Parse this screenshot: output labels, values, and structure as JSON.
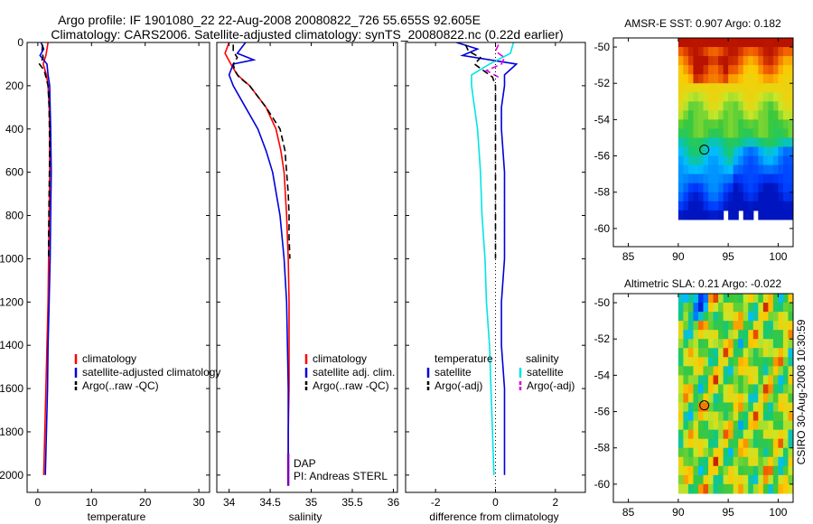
{
  "header": {
    "line1": "Argo profile: IF 1901080_22 22-Aug-2008 20080822_726 55.655S 92.605E",
    "line2": "Climatology: CARS2006. Satellite-adjusted climatology: synTS_20080822.nc (0.22d earlier)"
  },
  "side_label": "CSIRO 30-Aug-2008 10:30:59",
  "colors": {
    "climatology": "#ff0000",
    "satellite": "#0000dd",
    "argo": "#000000",
    "satellite_diff_salinity": "#00e5e5",
    "argo_adj_salinity": "#dd00dd",
    "marker_profile": "#7a00b4"
  },
  "chart_data": [
    {
      "id": "temperature",
      "type": "line",
      "xlabel": "temperature",
      "ylabel": "",
      "xlim": [
        -2,
        32
      ],
      "ylim": [
        2080,
        0
      ],
      "xticks": [
        "0",
        "10",
        "20",
        "30"
      ],
      "xtick_values": [
        0,
        10,
        20,
        30
      ],
      "yticks": [
        "0",
        "200",
        "400",
        "600",
        "800",
        "1000",
        "1200",
        "1400",
        "1600",
        "1800",
        "2000"
      ],
      "ytick_values": [
        0,
        200,
        400,
        600,
        800,
        1000,
        1200,
        1400,
        1600,
        1800,
        2000
      ],
      "legend": {
        "position": "lower-right",
        "entries": [
          "climatology",
          "satellite-adjusted climatology",
          "Argo(..raw -QC)"
        ]
      },
      "series": [
        {
          "name": "climatology",
          "style": "solid",
          "depth": [
            0,
            30,
            60,
            100,
            150,
            200,
            300,
            400,
            600,
            800,
            1000,
            1200,
            1400,
            1600,
            1800,
            2000
          ],
          "value": [
            1.9,
            1.7,
            1.5,
            1.0,
            1.6,
            1.9,
            2.1,
            2.2,
            2.2,
            2.1,
            2.0,
            1.9,
            1.7,
            1.5,
            1.3,
            1.1
          ]
        },
        {
          "name": "satellite-adjusted climatology",
          "style": "solid",
          "depth": [
            0,
            30,
            60,
            100,
            150,
            200,
            300,
            400,
            600,
            800,
            1000,
            1200,
            1400,
            1600,
            1800,
            2000
          ],
          "value": [
            0.6,
            1.1,
            0.4,
            1.7,
            1.9,
            2.2,
            2.3,
            2.4,
            2.5,
            2.4,
            2.3,
            2.1,
            1.9,
            1.8,
            1.6,
            1.4
          ]
        },
        {
          "name": "Argo(..raw -QC)",
          "style": "dashed",
          "depth": [
            10,
            40,
            70,
            100,
            130,
            160,
            200,
            300,
            500,
            700,
            900,
            1000
          ],
          "value": [
            0.9,
            0.8,
            1.0,
            0.3,
            1.2,
            1.5,
            1.9,
            2.1,
            2.2,
            2.1,
            2.0,
            2.0
          ]
        }
      ]
    },
    {
      "id": "salinity",
      "type": "line",
      "xlabel": "salinity",
      "ylabel": "",
      "xlim": [
        33.85,
        36.05
      ],
      "ylim": [
        2080,
        0
      ],
      "xticks": [
        "34",
        "34.5",
        "35",
        "35.5",
        "36"
      ],
      "xtick_values": [
        34,
        34.5,
        35,
        35.5,
        36
      ],
      "legend": {
        "position": "lower-right",
        "entries": [
          "climatology",
          "satellite adj. clim.",
          "Argo(..raw -QC)"
        ]
      },
      "annotation": {
        "lines": [
          "DAP",
          "PI: Andreas STERL"
        ]
      },
      "series": [
        {
          "name": "climatology",
          "style": "solid",
          "depth": [
            0,
            50,
            100,
            150,
            200,
            300,
            400,
            500,
            600,
            800,
            1000,
            1200,
            1400,
            1600,
            1800,
            2000
          ],
          "value": [
            34.0,
            33.95,
            34.02,
            34.1,
            34.25,
            34.45,
            34.57,
            34.63,
            34.67,
            34.7,
            34.72,
            34.73,
            34.73,
            34.73,
            34.72,
            34.72
          ]
        },
        {
          "name": "satellite adj. clim.",
          "style": "solid",
          "depth": [
            0,
            50,
            80,
            100,
            150,
            200,
            300,
            400,
            500,
            600,
            800,
            1000,
            1200,
            1400,
            1600,
            1800,
            2000
          ],
          "value": [
            34.2,
            34.1,
            34.3,
            34.05,
            34.0,
            34.05,
            34.2,
            34.35,
            34.45,
            34.53,
            34.62,
            34.67,
            34.7,
            34.71,
            34.72,
            34.72,
            34.72
          ]
        },
        {
          "name": "Argo(..raw -QC)",
          "style": "dashed",
          "depth": [
            10,
            40,
            70,
            100,
            130,
            160,
            200,
            300,
            400,
            500,
            600,
            700,
            800,
            900,
            1000
          ],
          "value": [
            34.05,
            34.05,
            34.1,
            34.05,
            34.07,
            34.12,
            34.25,
            34.45,
            34.62,
            34.68,
            34.7,
            34.72,
            34.73,
            34.73,
            34.74
          ]
        },
        {
          "name": "profile-marker",
          "style": "solid",
          "depth": [
            1900,
            2050
          ],
          "value": [
            34.72,
            34.72
          ]
        }
      ]
    },
    {
      "id": "difference",
      "type": "line",
      "xlabel": "difference from climatology",
      "ylabel": "",
      "xlim": [
        -3,
        3
      ],
      "ylim": [
        2080,
        0
      ],
      "xticks": [
        "-2",
        "0",
        "2"
      ],
      "xtick_values": [
        -2,
        0,
        2
      ],
      "legend": {
        "position": "lower-center",
        "groups": [
          {
            "title": "temperature",
            "entries": [
              "satellite",
              "Argo(-adj)"
            ]
          },
          {
            "title": "salinity",
            "entries": [
              "satellite",
              "Argo(-adj)"
            ]
          }
        ]
      },
      "series": [
        {
          "name": "temperature satellite",
          "style": "solid",
          "depth": [
            0,
            30,
            60,
            100,
            150,
            200,
            300,
            400,
            600,
            800,
            1000,
            1200,
            1400,
            1600,
            1800,
            2000
          ],
          "value": [
            -1.3,
            -0.6,
            -1.1,
            0.7,
            0.3,
            0.3,
            0.2,
            0.2,
            0.3,
            0.3,
            0.3,
            0.2,
            0.2,
            0.3,
            0.3,
            0.3
          ]
        },
        {
          "name": "temperature Argo(-adj)",
          "style": "dashed",
          "depth": [
            10,
            40,
            70,
            100,
            130,
            160,
            200,
            300,
            500,
            700,
            900,
            1000
          ],
          "value": [
            -1.0,
            -0.9,
            -0.5,
            -0.7,
            -0.4,
            -0.1,
            0.0,
            0.0,
            0.0,
            0.0,
            0.0,
            0.0
          ]
        },
        {
          "name": "salinity satellite",
          "style": "solid",
          "depth": [
            0,
            50,
            100,
            150,
            200,
            300,
            400,
            500,
            600,
            800,
            1000,
            1200,
            1400,
            1600,
            1800,
            2000
          ],
          "value": [
            0.6,
            0.5,
            -0.2,
            -0.8,
            -0.8,
            -0.7,
            -0.6,
            -0.55,
            -0.5,
            -0.45,
            -0.35,
            -0.3,
            -0.2,
            -0.15,
            -0.1,
            -0.05
          ]
        },
        {
          "name": "salinity Argo(-adj)",
          "style": "dashed",
          "depth": [
            10,
            40,
            70,
            100,
            130,
            160
          ],
          "value": [
            0.1,
            0.0,
            0.3,
            0.2,
            -0.3,
            0.1
          ]
        },
        {
          "name": "zero",
          "style": "dotted",
          "depth": [
            0,
            2080
          ],
          "value": [
            0,
            0
          ]
        }
      ]
    },
    {
      "id": "sst-map",
      "type": "heatmap",
      "title": "AMSR-E SST: 0.907 Argo: 0.182",
      "xlim": [
        83.5,
        101.5
      ],
      "ylim": [
        -61.0,
        -49.5
      ],
      "xticks": [
        "85",
        "90",
        "95",
        "100"
      ],
      "xtick_values": [
        85,
        90,
        95,
        100
      ],
      "yticks": [
        "-50",
        "-52",
        "-54",
        "-56",
        "-58",
        "-60"
      ],
      "ytick_values": [
        -50,
        -52,
        -54,
        -56,
        -58,
        -60
      ],
      "data_extent": {
        "lon": [
          90,
          101.5
        ],
        "lat": [
          -59.3,
          -49.5
        ]
      },
      "marker": {
        "lon": 92.605,
        "lat": -55.655
      }
    },
    {
      "id": "sla-map",
      "type": "heatmap",
      "title": "Altimetric SLA: 0.21 Argo: -0.022",
      "xlim": [
        83.5,
        101.5
      ],
      "ylim": [
        -61.0,
        -49.5
      ],
      "xticks": [
        "85",
        "90",
        "95",
        "100"
      ],
      "xtick_values": [
        85,
        90,
        95,
        100
      ],
      "yticks": [
        "-50",
        "-52",
        "-54",
        "-56",
        "-58",
        "-60"
      ],
      "ytick_values": [
        -50,
        -52,
        -54,
        -56,
        -58,
        -60
      ],
      "data_extent": {
        "lon": [
          90,
          101.5
        ],
        "lat": [
          -60.2,
          -49.5
        ]
      },
      "marker": {
        "lon": 92.605,
        "lat": -55.655
      }
    }
  ]
}
